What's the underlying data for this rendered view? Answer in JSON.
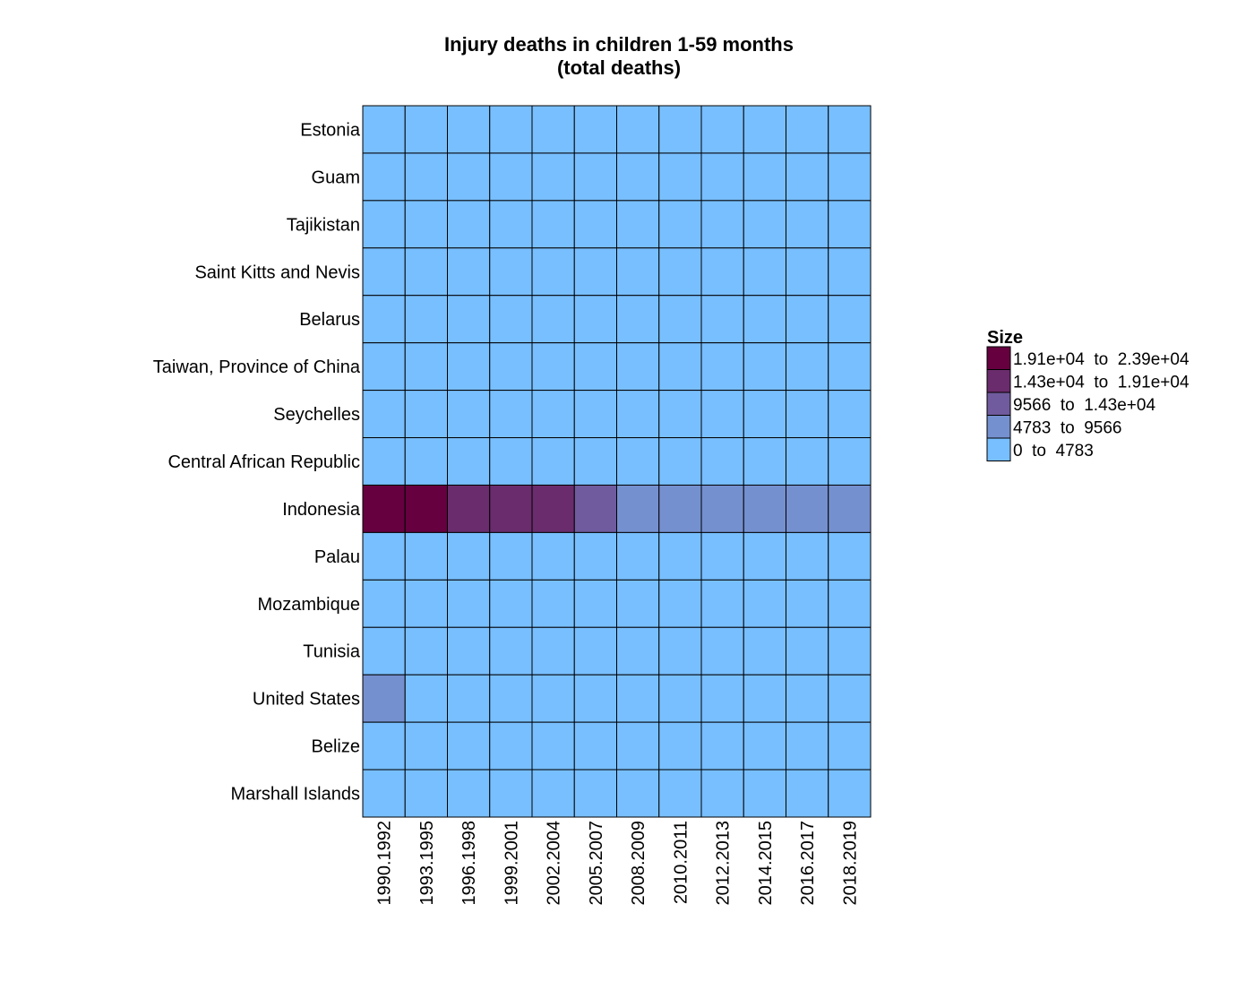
{
  "chart_data": {
    "type": "heatmap",
    "title": "Injury deaths in children 1-59 months",
    "subtitle": "(total deaths)",
    "rows": [
      "Estonia",
      "Guam",
      "Tajikistan",
      "Saint Kitts and Nevis",
      "Belarus",
      "Taiwan, Province of China",
      "Seychelles",
      "Central African Republic",
      "Indonesia",
      "Palau",
      "Mozambique",
      "Tunisia",
      "United States",
      "Belize",
      "Marshall Islands"
    ],
    "columns": [
      "1990.1992",
      "1993.1995",
      "1996.1998",
      "1999.2001",
      "2002.2004",
      "2005.2007",
      "2008.2009",
      "2010.2011",
      "2012.2013",
      "2014.2015",
      "2016.2017",
      "2018.2019"
    ],
    "bins": [
      {
        "label": "1.91e+04  to  2.39e+04",
        "color": "#66003f"
      },
      {
        "label": "1.43e+04  to  1.91e+04",
        "color": "#6a2c6d"
      },
      {
        "label": "9566  to  1.43e+04",
        "color": "#6f5b9d"
      },
      {
        "label": "4783  to  9566",
        "color": "#7590cf"
      },
      {
        "label": "0  to  4783",
        "color": "#78bfff"
      }
    ],
    "cell_bins": [
      [
        4,
        4,
        4,
        4,
        4,
        4,
        4,
        4,
        4,
        4,
        4,
        4
      ],
      [
        4,
        4,
        4,
        4,
        4,
        4,
        4,
        4,
        4,
        4,
        4,
        4
      ],
      [
        4,
        4,
        4,
        4,
        4,
        4,
        4,
        4,
        4,
        4,
        4,
        4
      ],
      [
        4,
        4,
        4,
        4,
        4,
        4,
        4,
        4,
        4,
        4,
        4,
        4
      ],
      [
        4,
        4,
        4,
        4,
        4,
        4,
        4,
        4,
        4,
        4,
        4,
        4
      ],
      [
        4,
        4,
        4,
        4,
        4,
        4,
        4,
        4,
        4,
        4,
        4,
        4
      ],
      [
        4,
        4,
        4,
        4,
        4,
        4,
        4,
        4,
        4,
        4,
        4,
        4
      ],
      [
        4,
        4,
        4,
        4,
        4,
        4,
        4,
        4,
        4,
        4,
        4,
        4
      ],
      [
        0,
        0,
        1,
        1,
        1,
        2,
        3,
        3,
        3,
        3,
        3,
        3
      ],
      [
        4,
        4,
        4,
        4,
        4,
        4,
        4,
        4,
        4,
        4,
        4,
        4
      ],
      [
        4,
        4,
        4,
        4,
        4,
        4,
        4,
        4,
        4,
        4,
        4,
        4
      ],
      [
        4,
        4,
        4,
        4,
        4,
        4,
        4,
        4,
        4,
        4,
        4,
        4
      ],
      [
        3,
        4,
        4,
        4,
        4,
        4,
        4,
        4,
        4,
        4,
        4,
        4
      ],
      [
        4,
        4,
        4,
        4,
        4,
        4,
        4,
        4,
        4,
        4,
        4,
        4
      ],
      [
        4,
        4,
        4,
        4,
        4,
        4,
        4,
        4,
        4,
        4,
        4,
        4
      ]
    ],
    "legend": {
      "title": "Size",
      "position": "right"
    },
    "grid": false
  }
}
